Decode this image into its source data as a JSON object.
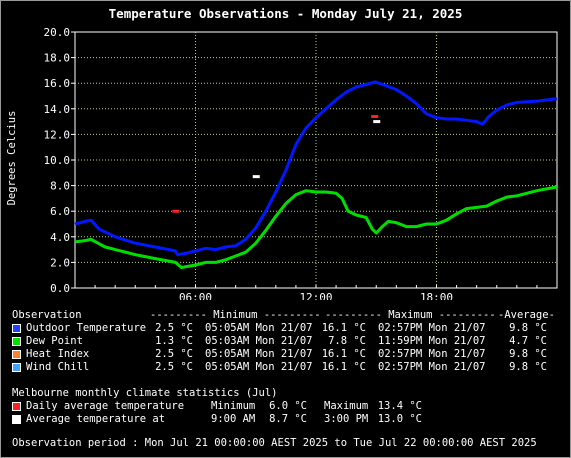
{
  "title": "Temperature Observations - Monday July 21, 2025",
  "chart_data": {
    "type": "line",
    "ylabel": "Degrees Celcius",
    "xlabel": "",
    "ylim": [
      0,
      20
    ],
    "yticks": [
      "0.0",
      "2.0",
      "4.0",
      "6.0",
      "8.0",
      "10.0",
      "12.0",
      "14.0",
      "16.0",
      "18.0",
      "20.0"
    ],
    "xlim_hours": [
      0,
      24
    ],
    "xticks": [
      {
        "h": 6,
        "label": "06:00"
      },
      {
        "h": 12,
        "label": "12:00"
      },
      {
        "h": 18,
        "label": "18:00"
      }
    ],
    "grid": true,
    "series": [
      {
        "name": "Outdoor Temperature",
        "color": "#0018ff",
        "points": [
          [
            0,
            5.0
          ],
          [
            0.5,
            5.2
          ],
          [
            0.8,
            5.3
          ],
          [
            1.2,
            4.6
          ],
          [
            2,
            4.0
          ],
          [
            3,
            3.5
          ],
          [
            4,
            3.2
          ],
          [
            5,
            2.9
          ],
          [
            5.1,
            2.6
          ],
          [
            5.5,
            2.7
          ],
          [
            6,
            2.9
          ],
          [
            6.5,
            3.1
          ],
          [
            7,
            3.0
          ],
          [
            7.5,
            3.2
          ],
          [
            8,
            3.3
          ],
          [
            8.5,
            3.8
          ],
          [
            9,
            4.7
          ],
          [
            9.5,
            6.0
          ],
          [
            10,
            7.5
          ],
          [
            10.5,
            9.2
          ],
          [
            11,
            11.2
          ],
          [
            11.5,
            12.5
          ],
          [
            12,
            13.3
          ],
          [
            12.5,
            14.0
          ],
          [
            13,
            14.7
          ],
          [
            13.5,
            15.3
          ],
          [
            14,
            15.7
          ],
          [
            14.5,
            15.9
          ],
          [
            14.95,
            16.1
          ],
          [
            15.5,
            15.8
          ],
          [
            16,
            15.5
          ],
          [
            16.5,
            15.0
          ],
          [
            17,
            14.4
          ],
          [
            17.5,
            13.6
          ],
          [
            18,
            13.3
          ],
          [
            18.5,
            13.2
          ],
          [
            19,
            13.2
          ],
          [
            19.5,
            13.1
          ],
          [
            20,
            13.0
          ],
          [
            20.3,
            12.8
          ],
          [
            20.6,
            13.4
          ],
          [
            21,
            13.9
          ],
          [
            21.5,
            14.3
          ],
          [
            22,
            14.5
          ],
          [
            23,
            14.6
          ],
          [
            24,
            14.8
          ]
        ]
      },
      {
        "name": "Dew Point",
        "color": "#00e000",
        "points": [
          [
            0,
            3.6
          ],
          [
            0.5,
            3.7
          ],
          [
            0.8,
            3.8
          ],
          [
            1.5,
            3.2
          ],
          [
            2,
            3.0
          ],
          [
            3,
            2.6
          ],
          [
            4,
            2.3
          ],
          [
            5,
            2.0
          ],
          [
            5.3,
            1.6
          ],
          [
            6,
            1.8
          ],
          [
            6.5,
            2.0
          ],
          [
            7,
            2.0
          ],
          [
            7.5,
            2.2
          ],
          [
            8,
            2.5
          ],
          [
            8.5,
            2.8
          ],
          [
            9,
            3.5
          ],
          [
            9.5,
            4.5
          ],
          [
            10,
            5.6
          ],
          [
            10.5,
            6.6
          ],
          [
            11,
            7.3
          ],
          [
            11.5,
            7.6
          ],
          [
            12,
            7.5
          ],
          [
            12.5,
            7.5
          ],
          [
            13,
            7.4
          ],
          [
            13.3,
            7.0
          ],
          [
            13.6,
            6.0
          ],
          [
            14,
            5.7
          ],
          [
            14.5,
            5.5
          ],
          [
            14.8,
            4.6
          ],
          [
            15,
            4.3
          ],
          [
            15.3,
            4.8
          ],
          [
            15.6,
            5.2
          ],
          [
            16,
            5.1
          ],
          [
            16.5,
            4.8
          ],
          [
            17,
            4.8
          ],
          [
            17.5,
            5.0
          ],
          [
            18,
            5.0
          ],
          [
            18.5,
            5.3
          ],
          [
            19,
            5.8
          ],
          [
            19.5,
            6.2
          ],
          [
            20,
            6.3
          ],
          [
            20.5,
            6.4
          ],
          [
            21,
            6.8
          ],
          [
            21.5,
            7.1
          ],
          [
            22,
            7.2
          ],
          [
            23,
            7.6
          ],
          [
            24,
            7.9
          ]
        ]
      }
    ],
    "climate_markers": [
      {
        "name": "Daily average temperature",
        "color": "#ff2020",
        "points": [
          [
            5,
            6.0
          ],
          [
            14.9,
            13.4
          ]
        ]
      },
      {
        "name": "Average temperature at",
        "color": "#ffffff",
        "points": [
          [
            9,
            8.7
          ],
          [
            15,
            13.0
          ]
        ]
      }
    ]
  },
  "legend": {
    "observation_header": "Observation",
    "minimum_header": "--------- Minimum ---------",
    "maximum_header": "--------- Maximum ---------",
    "average_header": "-Average-",
    "rows": [
      {
        "name": "Outdoor Temperature",
        "color": "#2040ff",
        "min": "2.5 °C",
        "min_time": "05:05AM Mon 21/07",
        "max": "16.1 °C",
        "max_time": "02:57PM Mon 21/07",
        "avg": "9.8 °C"
      },
      {
        "name": "Dew Point",
        "color": "#00e000",
        "min": "1.3 °C",
        "min_time": "05:03AM Mon 21/07",
        "max": "7.8 °C",
        "max_time": "11:59PM Mon 21/07",
        "avg": "4.7 °C"
      },
      {
        "name": "Heat Index",
        "color": "#ff8030",
        "min": "2.5 °C",
        "min_time": "05:05AM Mon 21/07",
        "max": "16.1 °C",
        "max_time": "02:57PM Mon 21/07",
        "avg": "9.8 °C"
      },
      {
        "name": "Wind Chill",
        "color": "#40a0ff",
        "min": "2.5 °C",
        "min_time": "05:05AM Mon 21/07",
        "max": "16.1 °C",
        "max_time": "02:57PM Mon 21/07",
        "avg": "9.8 °C"
      }
    ],
    "climate_header": "Melbourne monthly climate statistics (Jul)",
    "climate_rows": [
      {
        "name": "Daily average temperature",
        "color": "#ff2020",
        "c1": "Minimum",
        "c2": "6.0 °C",
        "c3": "Maximum",
        "c4": "13.4 °C"
      },
      {
        "name": "Average temperature at",
        "color": "#ffffff",
        "c1": "9:00 AM",
        "c2": "8.7 °C",
        "c3": "3:00 PM",
        "c4": "13.0 °C"
      }
    ],
    "period": "Observation period : Mon Jul 21 00:00:00 AEST 2025 to Tue Jul 22 00:00:00 AEST 2025"
  }
}
